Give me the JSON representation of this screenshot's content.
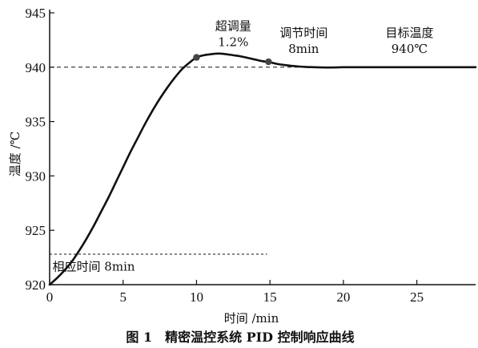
{
  "chart_data": {
    "type": "line",
    "caption": "图 1　精密温控系统 PID 控制响应曲线",
    "xlabel": "时间 /min",
    "ylabel": "温度 /℃",
    "xlim": [
      0,
      29
    ],
    "ylim": [
      920,
      945
    ],
    "xticks": [
      0,
      5,
      10,
      15,
      20,
      25
    ],
    "yticks": [
      920,
      925,
      930,
      935,
      940,
      945
    ],
    "grid": false,
    "series": [
      {
        "x": [
          0,
          0.5,
          1,
          1.5,
          2,
          2.5,
          3,
          3.5,
          4,
          4.5,
          5,
          5.5,
          6,
          6.5,
          7,
          7.5,
          8,
          8.5,
          9,
          9.5,
          10,
          10.5,
          11,
          11.5,
          12,
          12.5,
          13,
          13.5,
          14,
          14.5,
          15,
          15.5,
          16,
          16.5,
          17,
          17.5,
          18,
          18.5,
          19,
          19.5,
          20,
          21,
          22,
          23,
          24,
          25,
          26,
          27,
          28,
          29
        ],
        "y": [
          920.0,
          920.6,
          921.3,
          922.1,
          923.1,
          924.2,
          925.4,
          926.7,
          928.0,
          929.4,
          930.8,
          932.2,
          933.5,
          934.8,
          936.0,
          937.1,
          938.1,
          939.0,
          939.8,
          940.4,
          940.9,
          941.1,
          941.2,
          941.25,
          941.2,
          941.1,
          941.0,
          940.85,
          940.7,
          940.55,
          940.45,
          940.3,
          940.2,
          940.12,
          940.06,
          940.02,
          940.0,
          939.98,
          939.97,
          939.98,
          940.0,
          940.0,
          940.0,
          940.0,
          940.0,
          940.0,
          940.0,
          940.0,
          940.0,
          940.0
        ]
      }
    ],
    "reference_lines": [
      {
        "axis": "y",
        "value": 940,
        "style": "dashed"
      },
      {
        "axis": "y",
        "value": 922.8,
        "x_end": 14.8,
        "style": "dashed"
      }
    ],
    "markers": [
      {
        "x": 10.0,
        "y": 940.9
      },
      {
        "x": 14.9,
        "y": 940.5
      }
    ],
    "annotations": [
      {
        "lines": [
          "超调量",
          "1.2%"
        ],
        "x": 12.5,
        "y": 943.4
      },
      {
        "lines": [
          "调节时间",
          "8min"
        ],
        "x": 17.3,
        "y": 942.8
      },
      {
        "lines": [
          "目标温度",
          "940℃"
        ],
        "x": 24.5,
        "y": 942.8
      },
      {
        "lines": [
          "相应时间 8min"
        ],
        "x": 3.0,
        "y": 921.3
      }
    ],
    "colors": {
      "line": "#111111",
      "marker": "#444444",
      "axis": "#111111"
    }
  }
}
